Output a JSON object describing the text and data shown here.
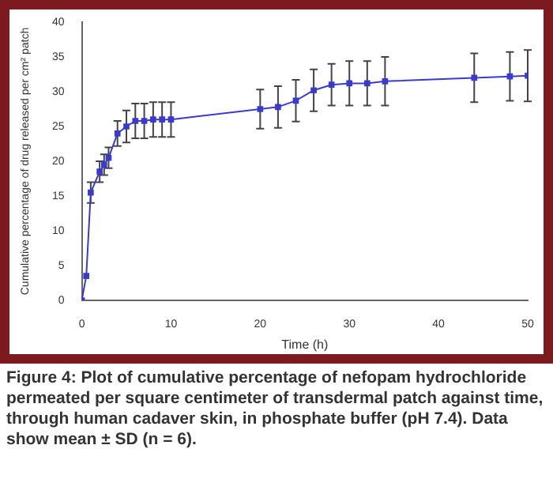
{
  "chart_data": {
    "type": "line",
    "xlabel": "Time (h)",
    "ylabel": "Cumulative percentage of drug released per cm² patch",
    "x": [
      0,
      0.5,
      1,
      2,
      2.5,
      3,
      4,
      5,
      6,
      7,
      8,
      9,
      10,
      20,
      22,
      24,
      26,
      28,
      30,
      32,
      34,
      44,
      48,
      50
    ],
    "series": [
      {
        "color": "#3a3ad0",
        "values": [
          0,
          3.5,
          15.5,
          18.5,
          19.5,
          20.5,
          24,
          25,
          25.8,
          25.8,
          26,
          26,
          26,
          27.5,
          27.8,
          28.7,
          30.2,
          31,
          31.2,
          31.2,
          31.5,
          32,
          32.2,
          32.3
        ],
        "errors": [
          null,
          null,
          1.5,
          1.5,
          1.5,
          1.5,
          1.8,
          2.3,
          2.5,
          2.5,
          2.5,
          2.5,
          2.5,
          2.8,
          3,
          3,
          3,
          3,
          3.2,
          3.2,
          3.5,
          3.5,
          3.5,
          3.7
        ]
      }
    ],
    "xlim": [
      0,
      50
    ],
    "xticks": [
      0,
      10,
      20,
      30,
      40,
      50
    ],
    "ylim": [
      0,
      40
    ],
    "yticks": [
      0,
      5,
      10,
      15,
      20,
      25,
      30,
      35,
      40
    ],
    "grid": false,
    "legend": false,
    "marker": "square",
    "line_style": "solid",
    "annotations": [
      "Figure 4: Plot of cumulative percentage of nefopam hydrochloride permeated per square centimeter of transdermal patch against time, through human cadaver skin, in phosphate buffer (pH 7.4). Data show mean ± SD (n = 6)."
    ]
  }
}
